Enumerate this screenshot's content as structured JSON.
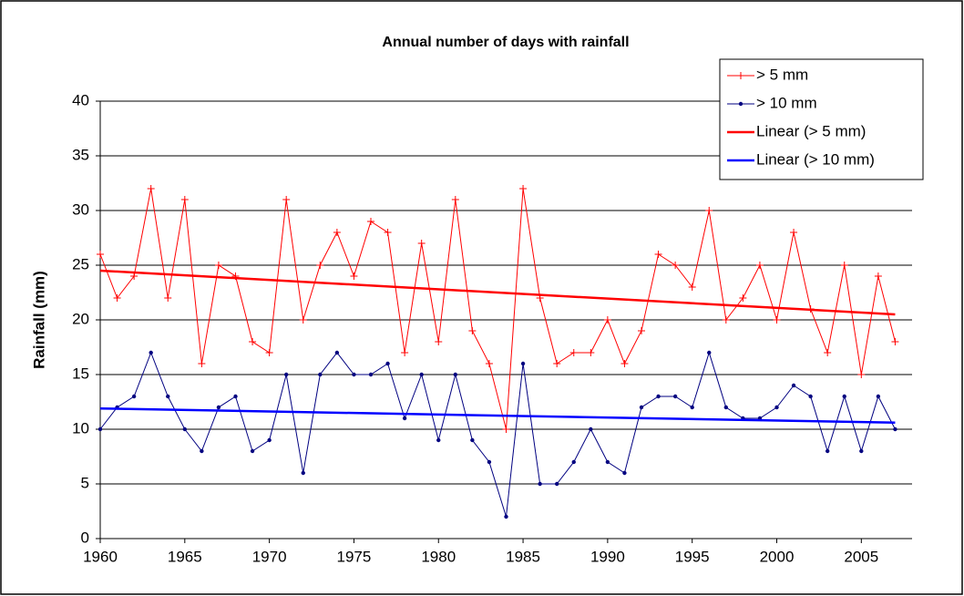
{
  "chart_data": {
    "type": "line",
    "title": "Annual number of days with rainfall",
    "y_label": "Rainfall (mm)",
    "xlim": [
      1960,
      2008
    ],
    "xticks": [
      1960,
      1965,
      1970,
      1975,
      1980,
      1985,
      1990,
      1995,
      2000,
      2005
    ],
    "ylim": [
      0,
      40
    ],
    "yticks": [
      0,
      5,
      10,
      15,
      20,
      25,
      30,
      35,
      40
    ],
    "grid": true,
    "legend": "top-right",
    "series": [
      {
        "name": "> 5 mm",
        "color": "#ff0000",
        "marker": "plus",
        "line_width": 1,
        "x": [
          1960,
          1961,
          1962,
          1963,
          1964,
          1965,
          1966,
          1967,
          1968,
          1969,
          1970,
          1971,
          1972,
          1973,
          1974,
          1975,
          1976,
          1977,
          1978,
          1979,
          1980,
          1981,
          1982,
          1983,
          1984,
          1985,
          1986,
          1987,
          1988,
          1989,
          1990,
          1991,
          1992,
          1993,
          1994,
          1995,
          1996,
          1997,
          1998,
          1999,
          2000,
          2001,
          2002,
          2003,
          2004,
          2005,
          2006,
          2007
        ],
        "values": [
          26,
          22,
          24,
          32,
          22,
          31,
          16,
          25,
          24,
          18,
          17,
          31,
          20,
          25,
          28,
          24,
          29,
          28,
          17,
          27,
          18,
          31,
          19,
          16,
          10,
          32,
          22,
          16,
          17,
          17,
          20,
          16,
          19,
          26,
          25,
          23,
          30,
          20,
          22,
          25,
          20,
          28,
          21,
          17,
          25,
          15,
          24,
          18
        ]
      },
      {
        "name": "> 10 mm",
        "color": "#000080",
        "marker": "dot",
        "line_width": 1,
        "x": [
          1960,
          1961,
          1962,
          1963,
          1964,
          1965,
          1966,
          1967,
          1968,
          1969,
          1970,
          1971,
          1972,
          1973,
          1974,
          1975,
          1976,
          1977,
          1978,
          1979,
          1980,
          1981,
          1982,
          1983,
          1984,
          1985,
          1986,
          1987,
          1988,
          1989,
          1990,
          1991,
          1992,
          1993,
          1994,
          1995,
          1996,
          1997,
          1998,
          1999,
          2000,
          2001,
          2002,
          2003,
          2004,
          2005,
          2006,
          2007
        ],
        "values": [
          10,
          12,
          13,
          17,
          13,
          10,
          8,
          12,
          13,
          8,
          9,
          15,
          6,
          15,
          17,
          15,
          15,
          16,
          11,
          15,
          9,
          15,
          9,
          7,
          2,
          16,
          5,
          5,
          7,
          10,
          7,
          6,
          12,
          13,
          13,
          12,
          17,
          12,
          11,
          11,
          12,
          14,
          13,
          8,
          13,
          8,
          13,
          10
        ]
      },
      {
        "name": "Linear (> 5 mm)",
        "color": "#ff0000",
        "marker": "none",
        "line_width": 2.5,
        "x": [
          1960,
          2007
        ],
        "values": [
          24.5,
          20.5
        ]
      },
      {
        "name": "Linear (> 10 mm)",
        "color": "#0000ff",
        "marker": "none",
        "line_width": 2.5,
        "x": [
          1960,
          2007
        ],
        "values": [
          11.9,
          10.6
        ]
      }
    ]
  }
}
